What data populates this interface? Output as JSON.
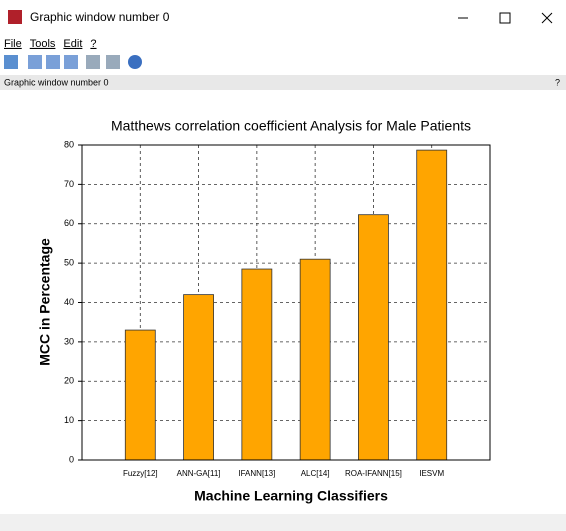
{
  "window": {
    "title": "Graphic window number 0"
  },
  "menu": [
    "File",
    "Tools",
    "Edit",
    "?"
  ],
  "info_bar": {
    "text": "Graphic window number 0",
    "help": "?"
  },
  "chart_data": {
    "type": "bar",
    "title": "Matthews correlation coefficient Analysis for Male Patients",
    "x_label": "Machine Learning Classifiers",
    "y_label": "MCC in Percentage",
    "categories": [
      "Fuzzy[12]",
      "ANN-GA[11]",
      "IFANN[13]",
      "ALC[14]",
      "ROA-IFANN[15]",
      "IESVM"
    ],
    "values": [
      33,
      42,
      48.5,
      51,
      62.3,
      78.7
    ],
    "color": "#ffa500",
    "ylim": [
      0,
      80
    ],
    "yticks": [
      0,
      10,
      20,
      30,
      40,
      50,
      60,
      70,
      80
    ],
    "grid": true
  }
}
